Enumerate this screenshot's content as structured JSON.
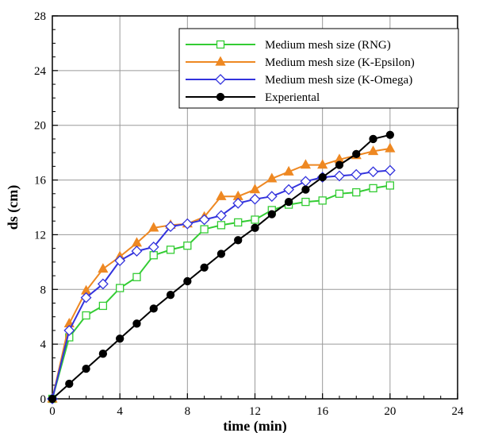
{
  "chart_data": {
    "type": "line",
    "xlabel": "time (min)",
    "ylabel": "ds (cm)",
    "xlim": [
      0,
      24
    ],
    "ylim": [
      0,
      28
    ],
    "xticks": [
      "0",
      "4",
      "8",
      "12",
      "16",
      "20",
      "24"
    ],
    "yticks": [
      "0",
      "4",
      "8",
      "12",
      "16",
      "20",
      "24",
      "28"
    ],
    "grid": true,
    "legend_position": "top-right",
    "x": [
      0,
      1,
      2,
      3,
      4,
      5,
      6,
      7,
      8,
      9,
      10,
      11,
      12,
      13,
      14,
      15,
      16,
      17,
      18,
      19,
      20
    ],
    "series": [
      {
        "name": "Medium mesh size (RNG)",
        "color": "#33cc33",
        "marker": "square-open",
        "values": [
          0,
          4.5,
          6.1,
          6.8,
          8.1,
          8.9,
          10.5,
          10.9,
          11.2,
          12.4,
          12.7,
          12.9,
          13.1,
          13.8,
          14.2,
          14.4,
          14.5,
          15.0,
          15.1,
          15.4,
          15.6
        ]
      },
      {
        "name": "Medium mesh size (K-Epsilon)",
        "color": "#ee8822",
        "marker": "triangle-filled",
        "values": [
          0,
          5.5,
          7.9,
          9.5,
          10.4,
          11.4,
          12.5,
          12.7,
          12.8,
          13.3,
          14.8,
          14.8,
          15.3,
          16.1,
          16.6,
          17.1,
          17.1,
          17.5,
          17.8,
          18.1,
          18.3
        ]
      },
      {
        "name": "Medium mesh size (K-Omega)",
        "color": "#3333dd",
        "marker": "diamond-open",
        "values": [
          0,
          5.0,
          7.4,
          8.4,
          10.1,
          10.8,
          11.1,
          12.6,
          12.8,
          13.1,
          13.4,
          14.3,
          14.6,
          14.8,
          15.3,
          15.9,
          16.2,
          16.3,
          16.4,
          16.6,
          16.7
        ]
      },
      {
        "name": "Experiental",
        "color": "#000000",
        "marker": "circle-filled",
        "values": [
          0,
          1.1,
          2.2,
          3.3,
          4.4,
          5.5,
          6.6,
          7.6,
          8.6,
          9.6,
          10.6,
          11.6,
          12.5,
          13.5,
          14.4,
          15.3,
          16.2,
          17.1,
          17.9,
          19.0,
          19.3
        ]
      }
    ]
  }
}
